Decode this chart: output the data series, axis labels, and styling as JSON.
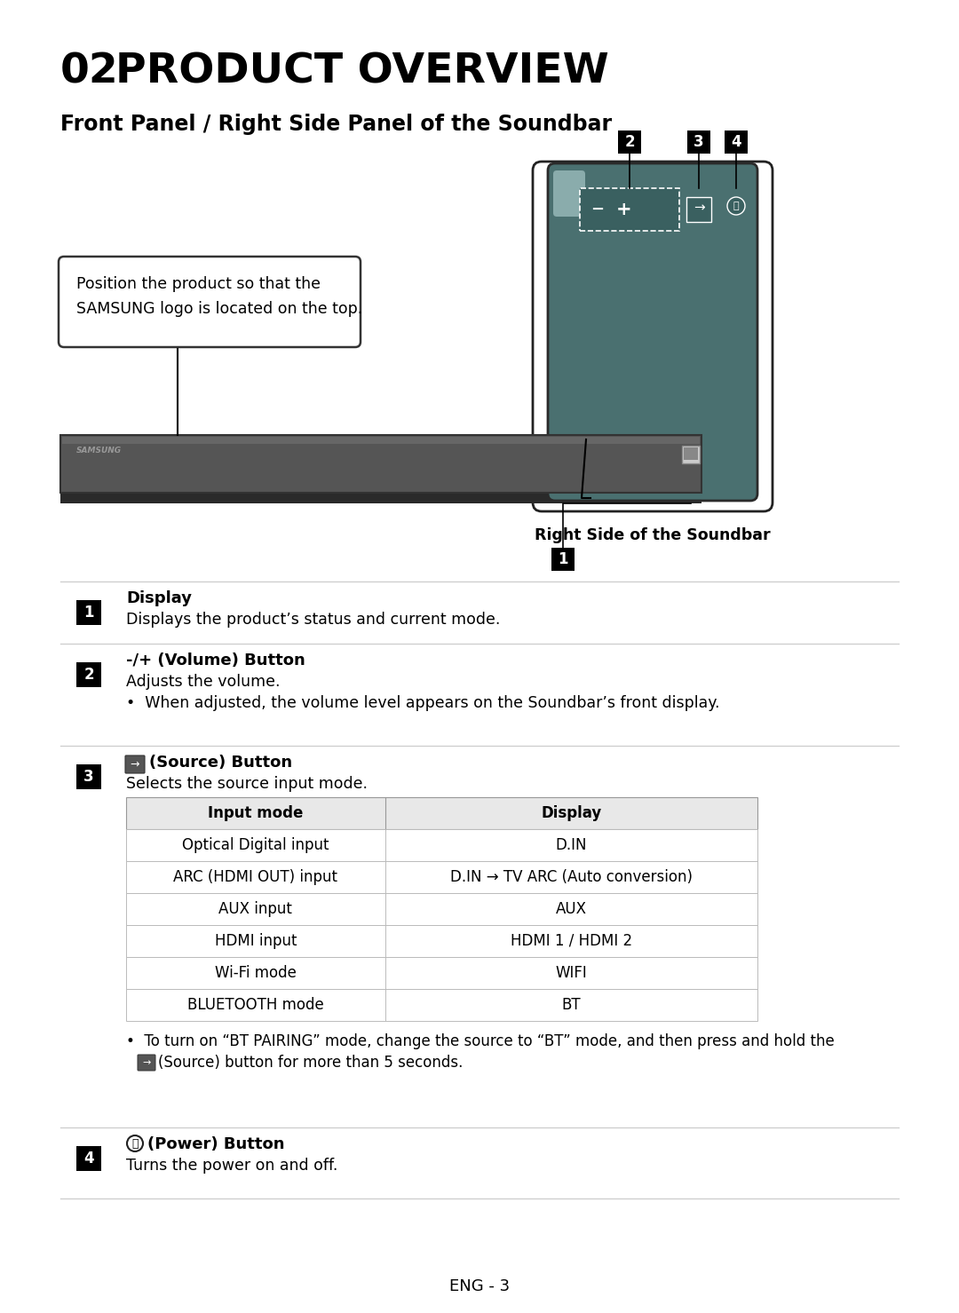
{
  "title_num": "02",
  "title_text": "PRODUCT OVERVIEW",
  "subtitle": "Front Panel / Right Side Panel of the Soundbar",
  "bg_color": "#ffffff",
  "page_num": "ENG - 3",
  "callout_text": "Position the product so that the\nSAMSUNG logo is located on the top.",
  "right_side_label": "Right Side of the Soundbar",
  "items": [
    {
      "num": "1",
      "title": "Display",
      "body": "Displays the product’s status and current mode.",
      "bullet": null,
      "has_icon": false
    },
    {
      "num": "2",
      "title": "-/+ (Volume) Button",
      "body": "Adjusts the volume.",
      "bullet": "When adjusted, the volume level appears on the Soundbar’s front display.",
      "has_icon": false
    },
    {
      "num": "3",
      "title": "(Source) Button",
      "body": "Selects the source input mode.",
      "has_icon": true,
      "bullet": null,
      "table_headers": [
        "Input mode",
        "Display"
      ],
      "table_rows": [
        [
          "Optical Digital input",
          "D.IN"
        ],
        [
          "ARC (HDMI OUT) input",
          "D.IN → TV ARC (Auto conversion)"
        ],
        [
          "AUX input",
          "AUX"
        ],
        [
          "HDMI input",
          "HDMI 1 / HDMI 2"
        ],
        [
          "Wi-Fi mode",
          "WIFI"
        ],
        [
          "BLUETOOTH mode",
          "BT"
        ]
      ],
      "bt_note_line1": "To turn on “BT PAIRING” mode, change the source to “BT” mode, and then press and hold the",
      "bt_note_line2": "(Source) button for more than 5 seconds."
    },
    {
      "num": "4",
      "title": "(Power) Button",
      "body": "Turns the power on and off.",
      "has_icon": true,
      "bullet": null
    }
  ],
  "soundbar": {
    "body_color": "#555555",
    "body_edge": "#333333",
    "top_color": "#666666",
    "shadow_color": "#2a2a2a",
    "panel_color": "#4a7070",
    "panel_edge": "#2a2a2a",
    "display_color": "#3a6060"
  }
}
